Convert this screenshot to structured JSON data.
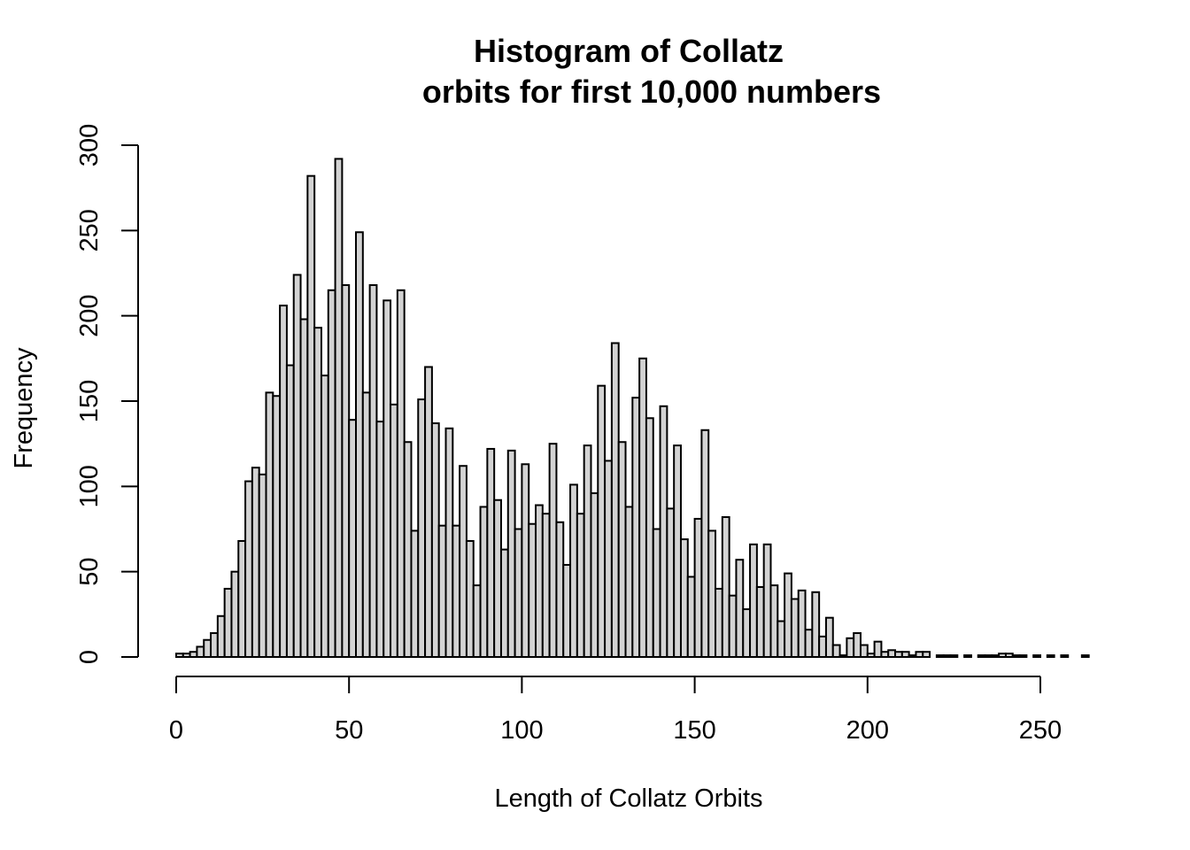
{
  "chart_data": {
    "type": "bar",
    "title": [
      "Histogram of Collatz",
      "orbits for first 10,000 numbers"
    ],
    "xlabel": "Length of Collatz Orbits",
    "ylabel": "Frequency",
    "xlim": [
      0,
      262
    ],
    "ylim": [
      0,
      300
    ],
    "x_ticks": [
      0,
      50,
      100,
      150,
      200,
      250
    ],
    "y_ticks": [
      0,
      50,
      100,
      150,
      200,
      250,
      300
    ],
    "bin_width": 2,
    "bin_start": 0,
    "values": [
      2,
      2,
      3,
      6,
      10,
      14,
      24,
      40,
      50,
      68,
      103,
      111,
      107,
      155,
      153,
      206,
      171,
      224,
      198,
      282,
      193,
      165,
      215,
      292,
      218,
      139,
      249,
      155,
      218,
      138,
      209,
      148,
      215,
      126,
      74,
      151,
      170,
      137,
      77,
      134,
      77,
      112,
      68,
      42,
      88,
      122,
      92,
      63,
      121,
      75,
      113,
      78,
      89,
      84,
      125,
      79,
      54,
      101,
      84,
      124,
      96,
      159,
      115,
      184,
      126,
      88,
      152,
      175,
      140,
      75,
      147,
      87,
      124,
      69,
      47,
      81,
      133,
      74,
      40,
      82,
      36,
      57,
      28,
      66,
      41,
      66,
      42,
      21,
      49,
      34,
      39,
      16,
      38,
      12,
      23,
      7,
      1,
      11,
      14,
      7,
      2,
      9,
      3,
      4,
      3,
      3,
      1,
      3,
      3,
      0,
      1,
      1,
      1,
      0,
      1,
      0,
      1,
      1,
      1,
      2,
      2,
      1,
      1,
      0,
      1,
      0,
      1,
      0,
      1,
      0,
      0,
      1
    ]
  }
}
